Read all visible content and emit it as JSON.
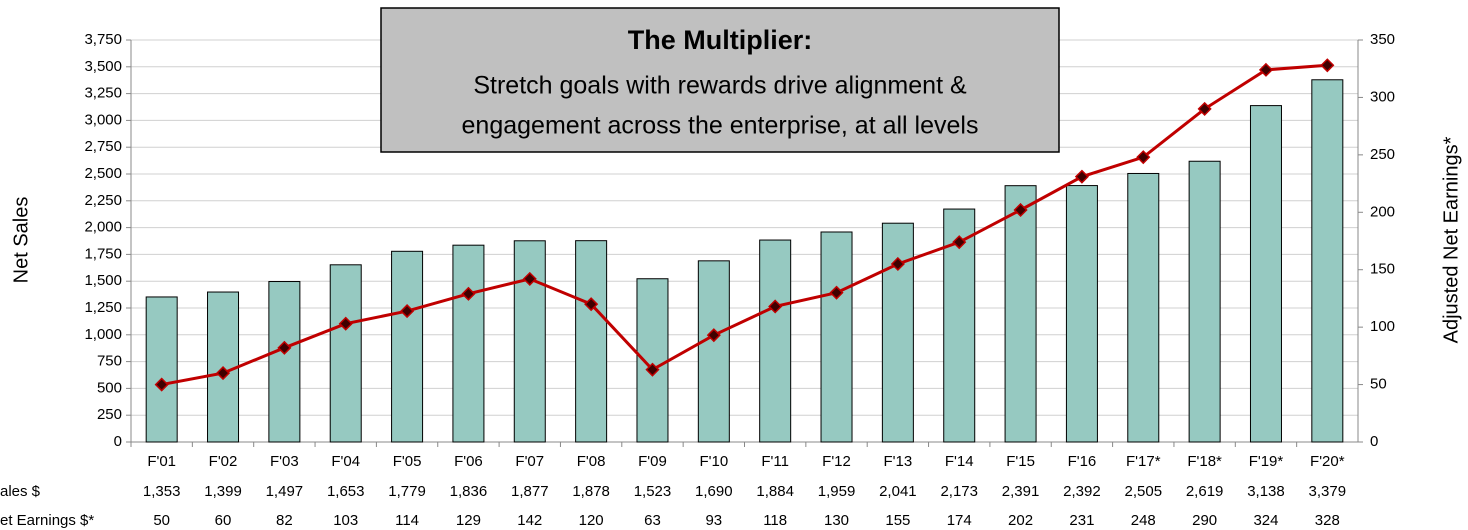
{
  "chart_data": {
    "type": "bar_line",
    "title": "The Multiplier:",
    "subtitle": [
      "Stretch goals with rewards drive alignment &",
      "engagement across the enterprise, at all levels"
    ],
    "ylabel": "Net Sales",
    "y2label": "Adjusted Net Earnings*",
    "categories": [
      "F'01",
      "F'02",
      "F'03",
      "F'04",
      "F'05",
      "F'06",
      "F'07",
      "F'08",
      "F'09",
      "F'10",
      "F'11",
      "F'12",
      "F'13",
      "F'14",
      "F'15",
      "F'16",
      "F'17*",
      "F'18*",
      "F'19*",
      "F'20*"
    ],
    "series": [
      {
        "name": "ales $",
        "type": "bar",
        "color": "#96c9c1",
        "axis": "y",
        "values": [
          1353,
          1399,
          1497,
          1653,
          1779,
          1836,
          1877,
          1878,
          1523,
          1690,
          1884,
          1959,
          2041,
          2173,
          2391,
          2392,
          2505,
          2619,
          3138,
          3379
        ],
        "value_labels": [
          "1,353",
          "1,399",
          "1,497",
          "1,653",
          "1,779",
          "1,836",
          "1,877",
          "1,878",
          "1,523",
          "1,690",
          "1,884",
          "1,959",
          "2,041",
          "2,173",
          "2,391",
          "2,392",
          "2,505",
          "2,619",
          "3,138",
          "3,379"
        ]
      },
      {
        "name": "et Earnings $*",
        "type": "line",
        "color": "#c00000",
        "axis": "y2",
        "values": [
          50,
          60,
          82,
          103,
          114,
          129,
          142,
          120,
          63,
          93,
          118,
          130,
          155,
          174,
          202,
          231,
          248,
          290,
          324,
          328
        ]
      }
    ],
    "ylim": [
      0,
      3750
    ],
    "yticks": [
      0,
      250,
      500,
      750,
      {
        "value": 1000,
        "label": "1,000"
      },
      {
        "value": 1250,
        "label": "1,250"
      },
      {
        "value": 1500,
        "label": "1,500"
      },
      {
        "value": 1750,
        "label": "1,750"
      },
      {
        "value": 2000,
        "label": "2,000"
      },
      {
        "value": 2250,
        "label": "2,250"
      },
      {
        "value": 2500,
        "label": "2,500"
      },
      {
        "value": 2750,
        "label": "2,750"
      },
      {
        "value": 3000,
        "label": "3,000"
      },
      {
        "value": 3250,
        "label": "3,250"
      },
      {
        "value": 3500,
        "label": "3,500"
      },
      {
        "value": 3750,
        "label": "3,750"
      }
    ],
    "y2lim": [
      0,
      350
    ],
    "y2ticks": [
      0,
      50,
      100,
      150,
      200,
      250,
      300,
      350
    ],
    "grid": true
  }
}
